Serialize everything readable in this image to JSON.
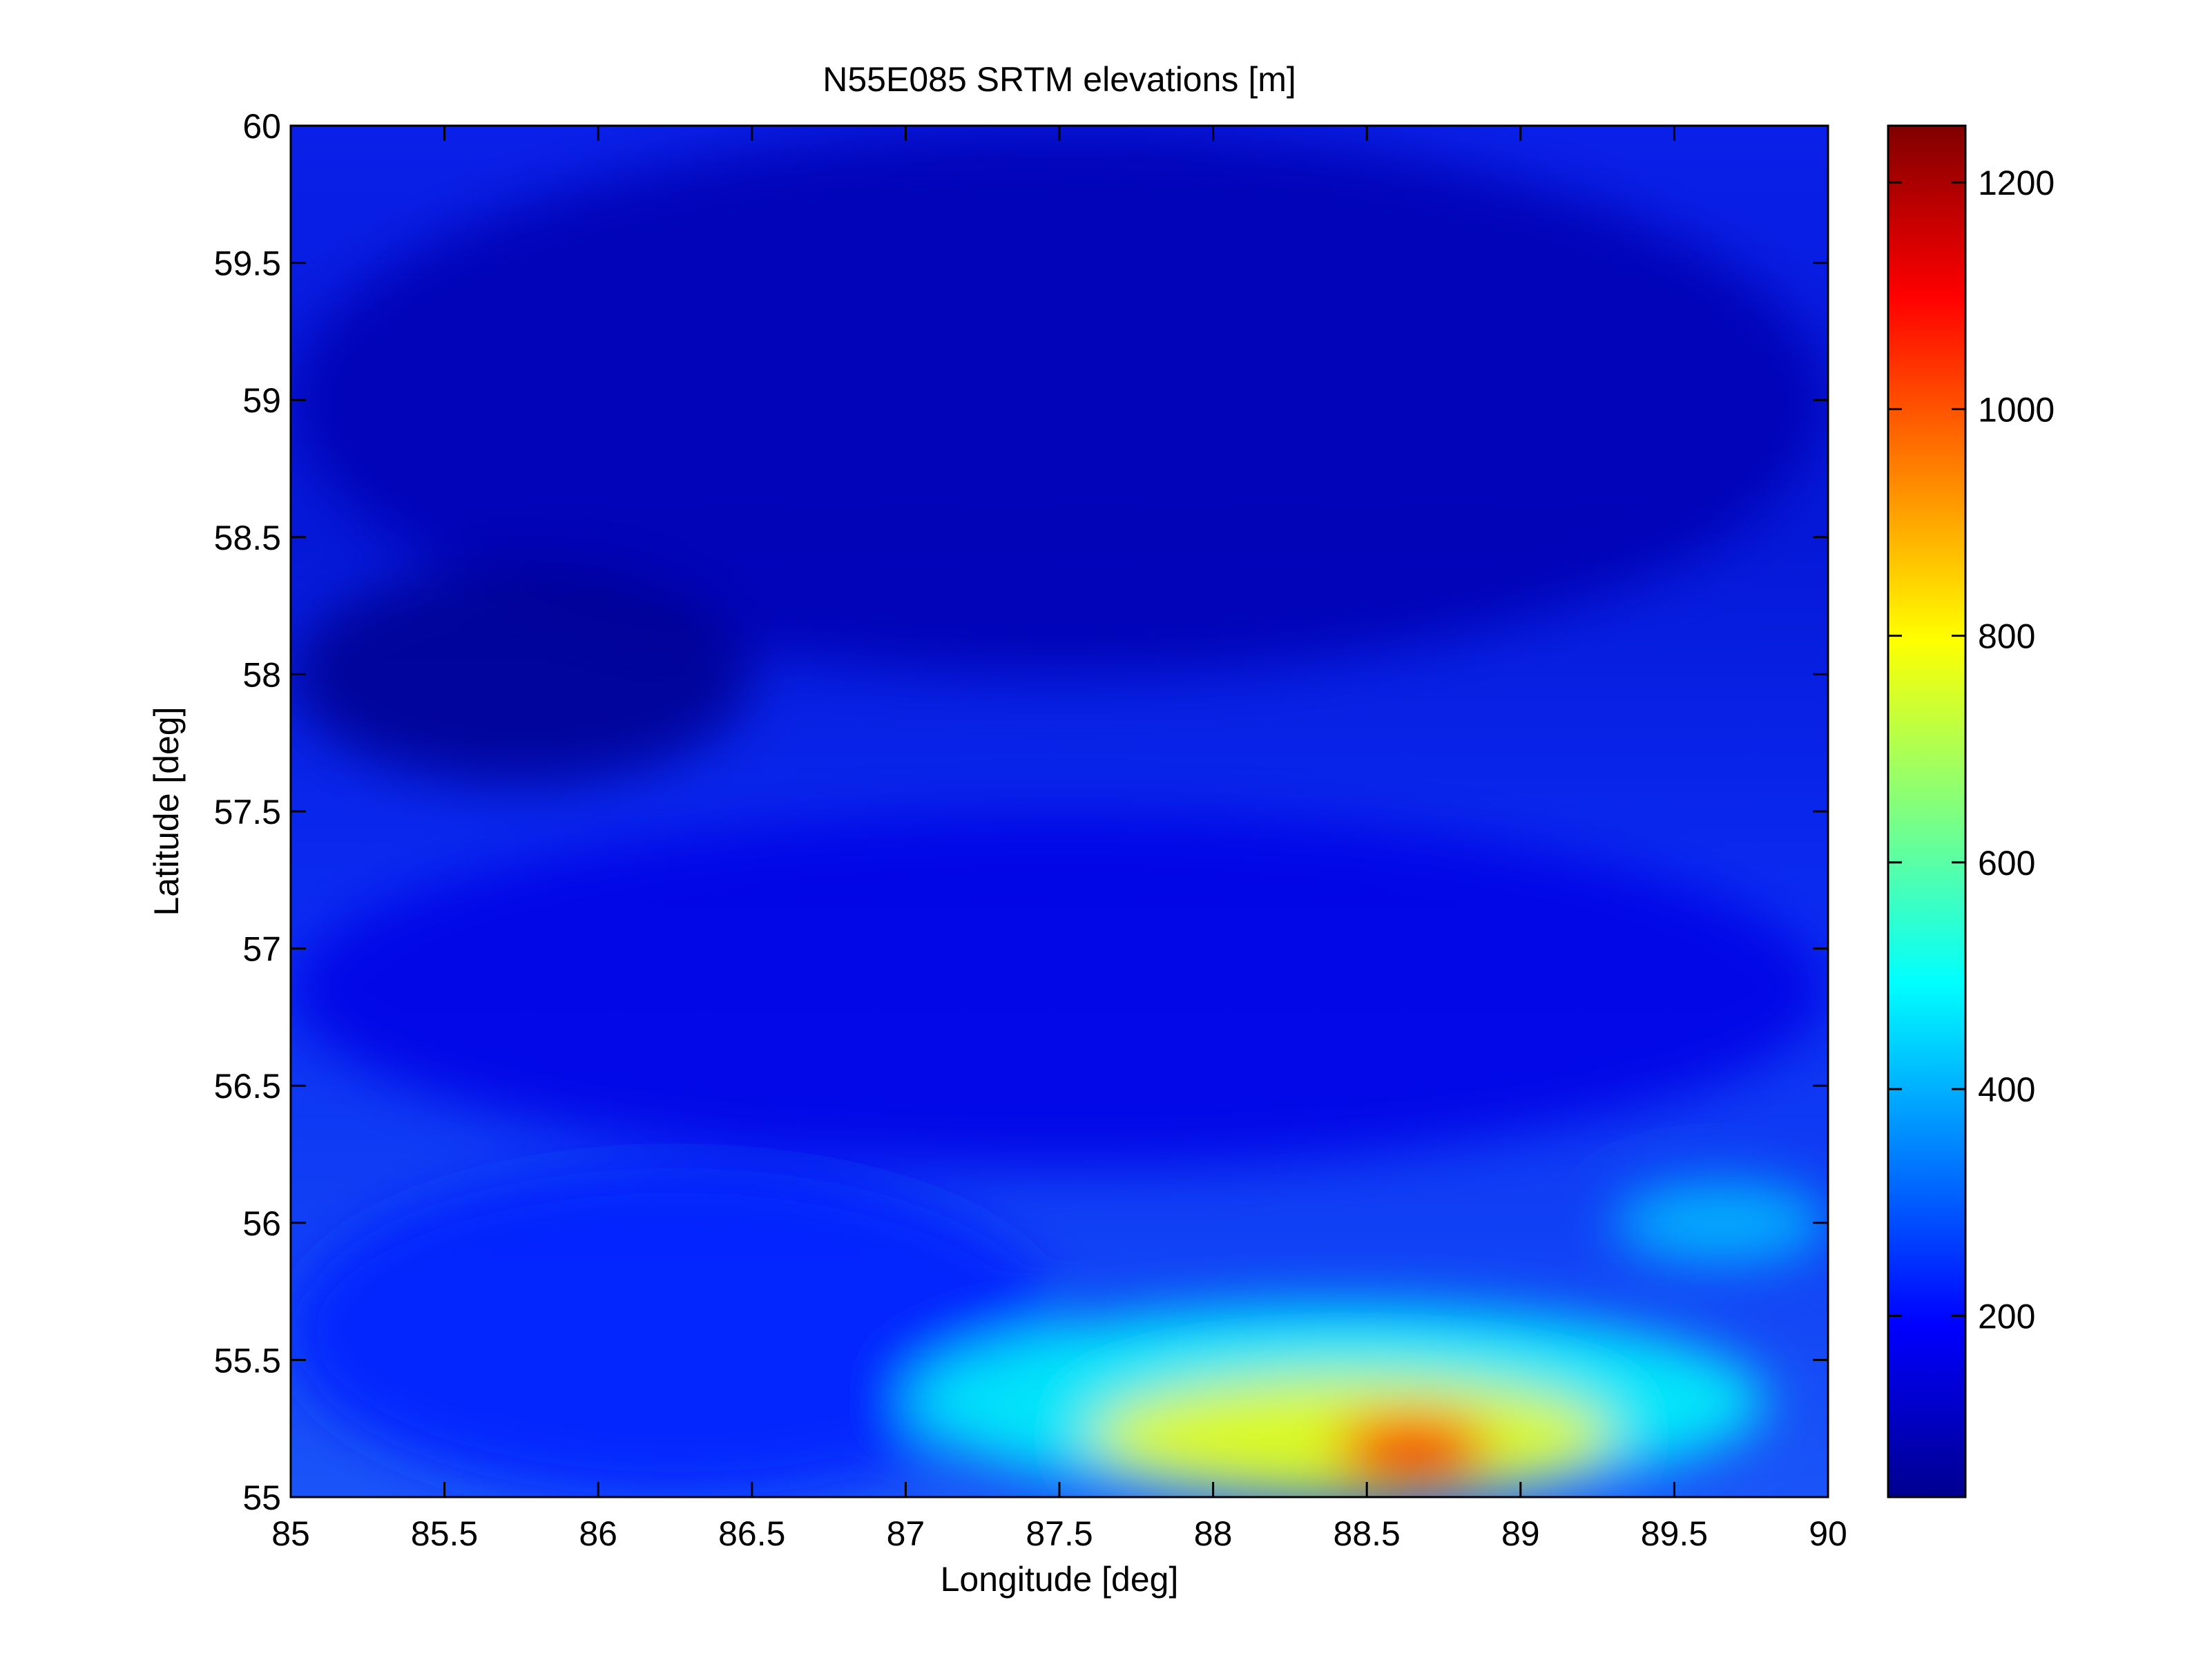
{
  "chart_data": {
    "type": "heatmap",
    "title": "N55E085 SRTM elevations [m]",
    "xlabel": "Longitude [deg]",
    "ylabel": "Latitude [deg]",
    "xlim": [
      85,
      90
    ],
    "ylim": [
      55,
      60
    ],
    "x_ticks": [
      85,
      85.5,
      86,
      86.5,
      87,
      87.5,
      88,
      88.5,
      89,
      89.5,
      90
    ],
    "x_tick_labels": [
      "85",
      "85.5",
      "86",
      "86.5",
      "87",
      "87.5",
      "88",
      "88.5",
      "89",
      "89.5",
      "90"
    ],
    "y_ticks": [
      55,
      55.5,
      56,
      56.5,
      57,
      57.5,
      58,
      58.5,
      59,
      59.5,
      60
    ],
    "y_tick_labels": [
      "55",
      "55.5",
      "56",
      "56.5",
      "57",
      "57.5",
      "58",
      "58.5",
      "59",
      "59.5",
      "60"
    ],
    "colormap": "jet",
    "colorbar": {
      "range": [
        40,
        1250
      ],
      "ticks": [
        200,
        400,
        600,
        800,
        1000,
        1200
      ],
      "tick_labels": [
        "200",
        "400",
        "600",
        "800",
        "1000",
        "1200"
      ]
    },
    "grid": false,
    "elevation_regions": [
      {
        "lon": [
          85.0,
          90.0
        ],
        "lat": [
          58.0,
          60.0
        ],
        "elevation_m": 100
      },
      {
        "lon": [
          85.0,
          86.5
        ],
        "lat": [
          57.6,
          58.4
        ],
        "elevation_m": 60
      },
      {
        "lon": [
          85.0,
          90.0
        ],
        "lat": [
          56.2,
          57.5
        ],
        "elevation_m": 160
      },
      {
        "lon": [
          85.0,
          87.5
        ],
        "lat": [
          55.0,
          56.2
        ],
        "elevation_m": 230
      },
      {
        "lon": [
          87.0,
          89.8
        ],
        "lat": [
          55.0,
          55.7
        ],
        "elevation_m": 500
      },
      {
        "lon": [
          87.6,
          89.3
        ],
        "lat": [
          55.0,
          55.45
        ],
        "elevation_m": 800
      },
      {
        "lon": [
          88.4,
          88.9
        ],
        "lat": [
          55.05,
          55.3
        ],
        "elevation_m": 1100
      },
      {
        "lon": [
          89.3,
          90.0
        ],
        "lat": [
          55.85,
          56.15
        ],
        "elevation_m": 420
      }
    ]
  }
}
